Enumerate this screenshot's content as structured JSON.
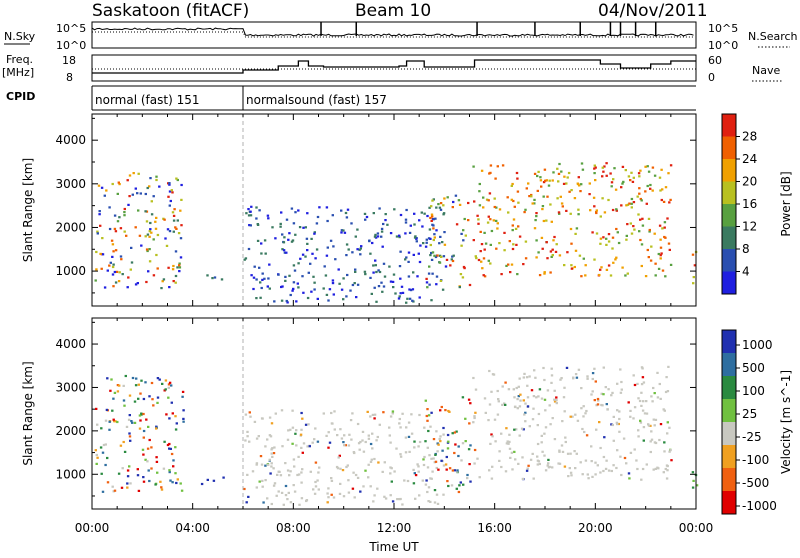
{
  "header": {
    "station": "Saskatoon (fitACF)",
    "beam": "Beam 10",
    "date": "04/Nov/2011"
  },
  "strip_labels": {
    "nsky": "N.Sky",
    "nsky_top": "10^5",
    "nsky_bottom": "10^0",
    "nsearch_top": "10^5",
    "nsearch_bottom": "10^0",
    "nsearch": "N.Search",
    "freq_line1": "Freq.",
    "freq_line2": "[MHz]",
    "freq_ticks": [
      "18",
      "8"
    ],
    "nave_ticks": [
      "60",
      "0"
    ],
    "nave": "Nave",
    "cpid": "CPID"
  },
  "cpid_segments": [
    {
      "label": "normal (fast) 151",
      "start_hour": 0,
      "end_hour": 6
    },
    {
      "label": "normalsound (fast) 157",
      "start_hour": 6,
      "end_hour": 24
    }
  ],
  "colors": {
    "power_scale": [
      "#1f1fe0",
      "#2a4fb0",
      "#3a7a60",
      "#58a040",
      "#b8c020",
      "#f0a000",
      "#f06000",
      "#e02010"
    ],
    "velocity_scale": [
      "#2030b0",
      "#2e6ea0",
      "#2a8a40",
      "#70c040",
      "#c8c8c0",
      "#f0a020",
      "#f06010",
      "#e00000"
    ],
    "ground_scatter": "#a0a0a0"
  },
  "chart_data": [
    {
      "type": "heatmap",
      "name": "Power panel",
      "xlabel": "",
      "ylabel": "Slant Range [km]",
      "xlim": [
        0,
        24
      ],
      "ylim": [
        200,
        4600
      ],
      "y_ticks": [
        "1000",
        "2000",
        "3000",
        "4000"
      ],
      "colorbar_label": "Power [dB]",
      "colorbar_ticks": [
        "4",
        "8",
        "12",
        "16",
        "20",
        "24",
        "28"
      ],
      "scatter_regions": [
        {
          "t0": 0.1,
          "t1": 3.6,
          "r0": 600,
          "r1": 3300,
          "level": "mixed"
        },
        {
          "t0": 4.2,
          "t1": 5.3,
          "r0": 800,
          "r1": 1000,
          "level": "low"
        },
        {
          "t0": 6.0,
          "t1": 14.0,
          "r0": 300,
          "r1": 2500,
          "level": "low"
        },
        {
          "t0": 13.2,
          "t1": 15.0,
          "r0": 600,
          "r1": 2800,
          "level": "mixed"
        },
        {
          "t0": 15.1,
          "t1": 23.0,
          "r0": 900,
          "r1": 3500,
          "level": "high"
        },
        {
          "t0": 23.6,
          "t1": 24.0,
          "r0": 700,
          "r1": 1500,
          "level": "high"
        }
      ]
    },
    {
      "type": "heatmap",
      "name": "Velocity panel",
      "xlabel": "Time UT",
      "ylabel": "Slant Range [km]",
      "xlim": [
        0,
        24
      ],
      "ylim": [
        200,
        4600
      ],
      "x_ticks": [
        "00:00",
        "04:00",
        "08:00",
        "12:00",
        "16:00",
        "20:00",
        "00:00"
      ],
      "y_ticks": [
        "1000",
        "2000",
        "3000",
        "4000"
      ],
      "colorbar_label": "Velocity [m s^-1]",
      "colorbar_ticks": [
        "1000",
        "500",
        "100",
        "25",
        "-25",
        "-100",
        "-500",
        "-1000"
      ],
      "scatter_regions": [
        {
          "t0": 0.1,
          "t1": 3.6,
          "r0": 600,
          "r1": 3300,
          "level": "mixed"
        },
        {
          "t0": 4.2,
          "t1": 5.3,
          "r0": 800,
          "r1": 1000,
          "level": "blue"
        },
        {
          "t0": 6.0,
          "t1": 14.0,
          "r0": 300,
          "r1": 2500,
          "level": "gray"
        },
        {
          "t0": 13.2,
          "t1": 15.0,
          "r0": 600,
          "r1": 2800,
          "level": "mixed"
        },
        {
          "t0": 15.1,
          "t1": 23.0,
          "r0": 900,
          "r1": 3500,
          "level": "gray"
        },
        {
          "t0": 23.6,
          "t1": 24.0,
          "r0": 700,
          "r1": 1500,
          "level": "green"
        }
      ]
    }
  ]
}
